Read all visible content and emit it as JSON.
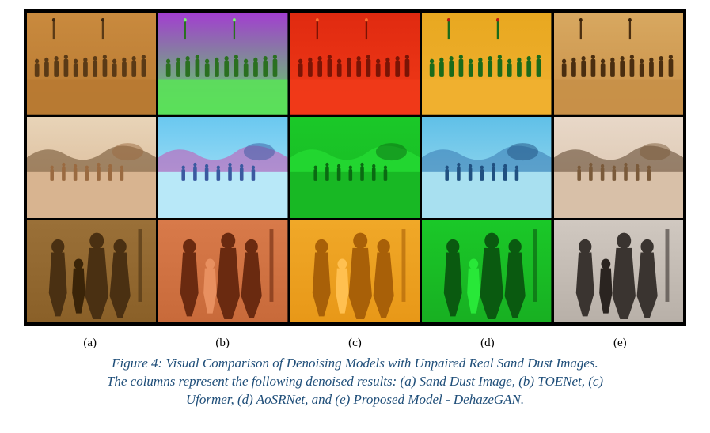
{
  "figure": {
    "labels": [
      "(a)",
      "(b)",
      "(c)",
      "(d)",
      "(e)"
    ],
    "caption_lines": [
      "Figure 4: Visual Comparison of Denoising Models with Unpaired Real Sand Dust Images.",
      "The columns represent the following denoised results: (a) Sand Dust Image, (b) TOENet, (c)",
      "Uformer, (d) AoSRNet, and (e) Proposed Model - DehazeGAN."
    ],
    "caption_color": "#1f4e79",
    "grid_border_color": "#000000",
    "cells": [
      {
        "id": "r1c1",
        "bg_top": "#c98a3e",
        "bg_bot": "#b87a32",
        "fg": "#5a3a16",
        "fg2": "#3d2710",
        "variant": "street"
      },
      {
        "id": "r1c2",
        "bg_top": "#a23ed0",
        "bg_bot": "#5be05a",
        "fg": "#2a7020",
        "fg2": "#7ff07a",
        "variant": "street"
      },
      {
        "id": "r1c3",
        "bg_top": "#e02a10",
        "bg_bot": "#f03a18",
        "fg": "#7a1405",
        "fg2": "#ff7030",
        "variant": "street"
      },
      {
        "id": "r1c4",
        "bg_top": "#e8a820",
        "bg_bot": "#f0b030",
        "fg": "#1a6a1a",
        "fg2": "#c01810",
        "variant": "street"
      },
      {
        "id": "r1c5",
        "bg_top": "#d8a860",
        "bg_bot": "#c89048",
        "fg": "#4a2e10",
        "fg2": "#3a2208",
        "variant": "street"
      },
      {
        "id": "r2c1",
        "bg_top": "#e8d4b8",
        "bg_bot": "#d8b490",
        "fg": "#9a6a40",
        "fg2": "#6a4a2a",
        "variant": "desert"
      },
      {
        "id": "r2c2",
        "bg_top": "#6ac8f0",
        "bg_bot": "#b8e8f8",
        "fg": "#3a5aa0",
        "fg2": "#c850b0",
        "variant": "desert"
      },
      {
        "id": "r2c3",
        "bg_top": "#1ac828",
        "bg_bot": "#18b824",
        "fg": "#0a6a12",
        "fg2": "#2ae838",
        "variant": "desert"
      },
      {
        "id": "r2c4",
        "bg_top": "#60c0e8",
        "bg_bot": "#a8e0f0",
        "fg": "#205080",
        "fg2": "#3878b0",
        "variant": "desert"
      },
      {
        "id": "r2c5",
        "bg_top": "#e8d8c8",
        "bg_bot": "#d8c0a8",
        "fg": "#7a5a3a",
        "fg2": "#5a4028",
        "variant": "desert"
      },
      {
        "id": "r3c1",
        "bg_top": "#9a7038",
        "bg_bot": "#8a6028",
        "fg": "#4a3012",
        "fg2": "#3a2408",
        "variant": "family"
      },
      {
        "id": "r3c2",
        "bg_top": "#d87a4a",
        "bg_bot": "#c86a3a",
        "fg": "#6a2a10",
        "fg2": "#e89060",
        "variant": "family"
      },
      {
        "id": "r3c3",
        "bg_top": "#f0a828",
        "bg_bot": "#e89818",
        "fg": "#a86008",
        "fg2": "#ffC050",
        "variant": "family"
      },
      {
        "id": "r3c4",
        "bg_top": "#1ac828",
        "bg_bot": "#18b022",
        "fg": "#0a5a10",
        "fg2": "#28e838",
        "variant": "family"
      },
      {
        "id": "r3c5",
        "bg_top": "#d0c8c0",
        "bg_bot": "#b8b0a8",
        "fg": "#3a3430",
        "fg2": "#2a2420",
        "variant": "family"
      }
    ]
  }
}
